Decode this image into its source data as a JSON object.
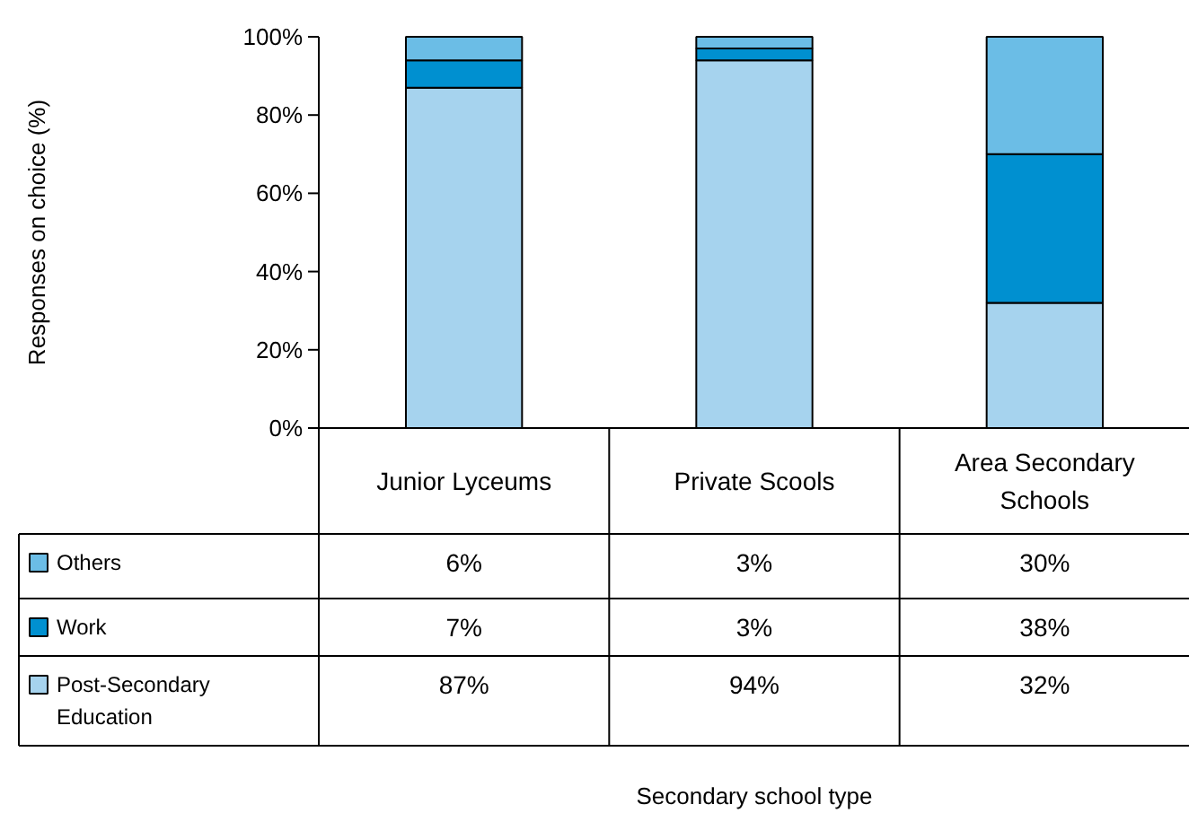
{
  "chart_data": {
    "type": "bar",
    "stacked": true,
    "annotations": [
      "Responses on choice (%)",
      "Secondary school type"
    ],
    "categories": [
      "Junior Lyceums",
      "Private Scools",
      "Area Secondary Schools"
    ],
    "series": [
      {
        "name": "Post-Secondary Education",
        "color": "#a6d3ee",
        "values": [
          87,
          94,
          32
        ],
        "value_labels": [
          "87%",
          "94%",
          "32%"
        ]
      },
      {
        "name": "Work",
        "color": "#0090d0",
        "values": [
          7,
          3,
          38
        ],
        "value_labels": [
          "7%",
          "3%",
          "38%"
        ]
      },
      {
        "name": "Others",
        "color": "#6bbde6",
        "values": [
          6,
          3,
          30
        ],
        "value_labels": [
          "6%",
          "3%",
          "30%"
        ]
      }
    ],
    "ylim": [
      0,
      100
    ],
    "yticks": [
      {
        "value": 0,
        "label": "0%"
      },
      {
        "value": 20,
        "label": "20%"
      },
      {
        "value": 40,
        "label": "40%"
      },
      {
        "value": 60,
        "label": "60%"
      },
      {
        "value": 80,
        "label": "80%"
      },
      {
        "value": 100,
        "label": "100%"
      }
    ],
    "grid": false,
    "legend": "bottom left"
  }
}
